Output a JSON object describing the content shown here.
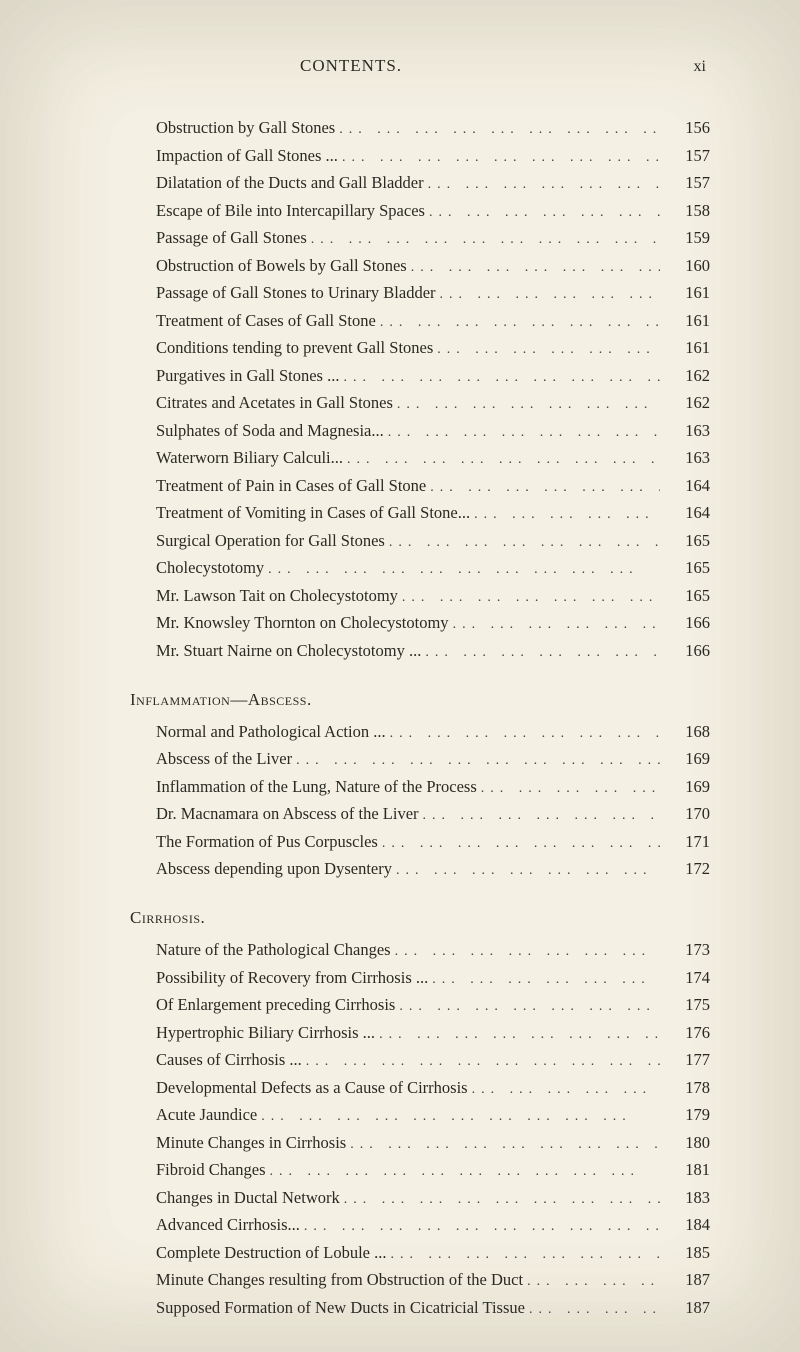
{
  "page": {
    "running_title": "CONTENTS.",
    "page_number": "xi",
    "colors": {
      "paper": "#f4f0e3",
      "ink": "#2a2a24",
      "leader": "#3a3a33"
    },
    "typography": {
      "body_font": "Georgia, 'Times New Roman', serif",
      "body_size_pt": 12,
      "heading_smallcaps": true
    }
  },
  "leader_dots": "...   ...   ...   ...   ...   ...   ...   ...   ...   ...",
  "sections": [
    {
      "heading": null,
      "entries": [
        {
          "label": "Obstruction by Gall Stones",
          "page": "156"
        },
        {
          "label": "Impaction of Gall Stones ...",
          "page": "157"
        },
        {
          "label": "Dilatation of the Ducts and Gall Bladder",
          "page": "157"
        },
        {
          "label": "Escape of Bile into Intercapillary Spaces",
          "page": "158"
        },
        {
          "label": "Passage of Gall Stones",
          "page": "159"
        },
        {
          "label": "Obstruction of Bowels by Gall Stones",
          "page": "160"
        },
        {
          "label": "Passage of Gall Stones to Urinary Bladder",
          "page": "161"
        },
        {
          "label": "Treatment of Cases of Gall Stone",
          "page": "161"
        },
        {
          "label": "Conditions tending to prevent Gall Stones",
          "page": "161"
        },
        {
          "label": "Purgatives in Gall Stones ...",
          "page": "162"
        },
        {
          "label": "Citrates and Acetates in Gall Stones",
          "page": "162"
        },
        {
          "label": "Sulphates of Soda and Magnesia...",
          "page": "163"
        },
        {
          "label": "Waterworn Biliary Calculi...",
          "page": "163"
        },
        {
          "label": "Treatment of Pain in Cases of Gall Stone",
          "page": "164"
        },
        {
          "label": "Treatment of Vomiting in Cases of Gall Stone...",
          "page": "164"
        },
        {
          "label": "Surgical Operation for Gall Stones",
          "page": "165"
        },
        {
          "label": "Cholecystotomy",
          "page": "165"
        },
        {
          "label": "Mr. Lawson Tait on Cholecystotomy",
          "page": "165"
        },
        {
          "label": "Mr. Knowsley Thornton on Cholecystotomy",
          "page": "166"
        },
        {
          "label": "Mr. Stuart Nairne on Cholecystotomy ...",
          "page": "166"
        }
      ]
    },
    {
      "heading": "Inflammation—Abscess.",
      "entries": [
        {
          "label": "Normal and Pathological Action ...",
          "page": "168"
        },
        {
          "label": "Abscess of the Liver",
          "page": "169"
        },
        {
          "label": "Inflammation of the Lung, Nature of the Process",
          "page": "169"
        },
        {
          "label": "Dr. Macnamara on Abscess of the Liver",
          "page": "170"
        },
        {
          "label": "The Formation of Pus Corpuscles",
          "page": "171"
        },
        {
          "label": "Abscess depending upon Dysentery",
          "page": "172"
        }
      ]
    },
    {
      "heading": "Cirrhosis.",
      "entries": [
        {
          "label": "Nature of the Pathological Changes",
          "page": "173"
        },
        {
          "label": "Possibility of Recovery from Cirrhosis ...",
          "page": "174"
        },
        {
          "label": "Of Enlargement preceding Cirrhosis",
          "page": "175"
        },
        {
          "label": "Hypertrophic Biliary Cirrhosis ...",
          "page": "176"
        },
        {
          "label": "Causes of Cirrhosis ...",
          "page": "177"
        },
        {
          "label": "Developmental Defects as a Cause of Cirrhosis",
          "page": "178"
        },
        {
          "label": "Acute Jaundice",
          "page": "179"
        },
        {
          "label": "Minute Changes in Cirrhosis",
          "page": "180"
        },
        {
          "label": "Fibroid Changes",
          "page": "181"
        },
        {
          "label": "Changes in Ductal Network",
          "page": "183"
        },
        {
          "label": "Advanced Cirrhosis...",
          "page": "184"
        },
        {
          "label": "Complete Destruction of Lobule ...",
          "page": "185"
        },
        {
          "label": "Minute Changes resulting from Obstruction of the Duct",
          "page": "187"
        },
        {
          "label": "Supposed Formation of New Ducts in Cicatricial Tissue",
          "page": "187"
        }
      ]
    }
  ]
}
